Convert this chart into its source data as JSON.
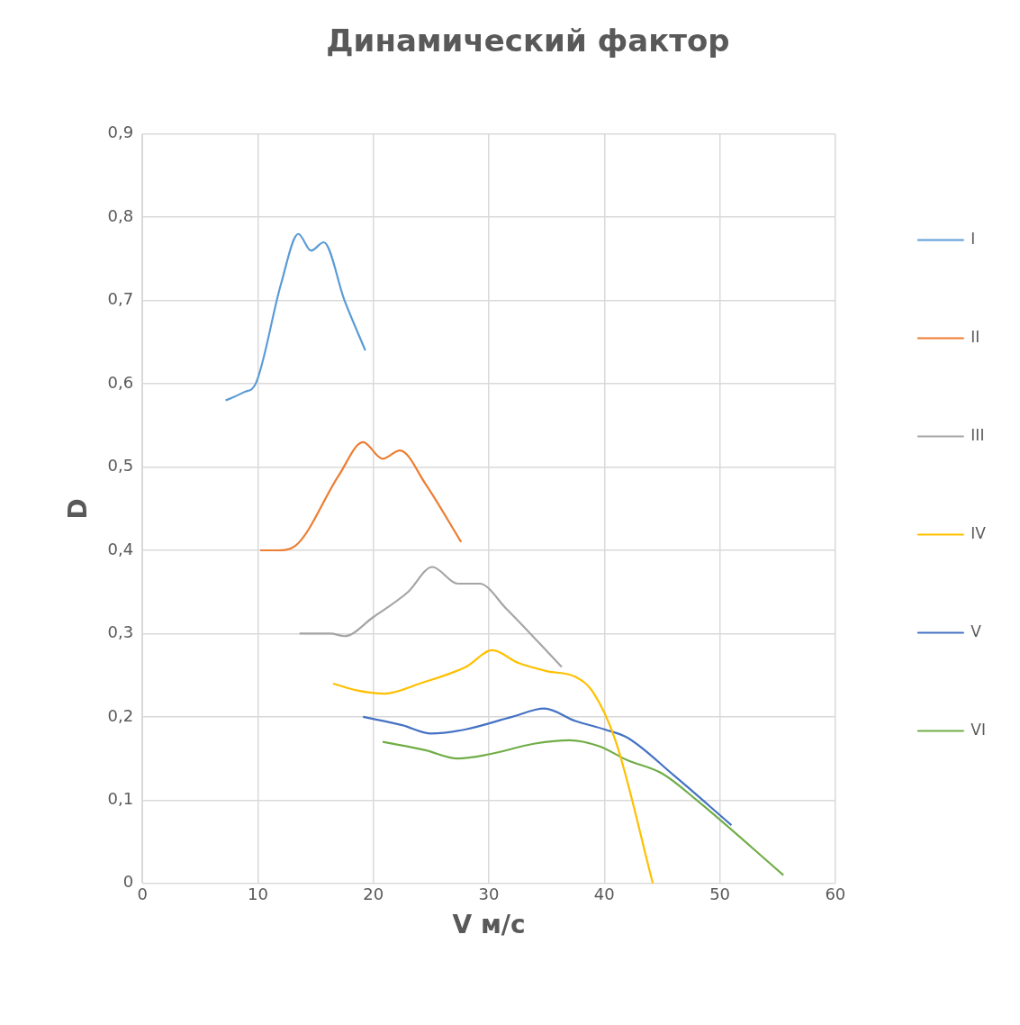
{
  "chart_data": {
    "type": "line",
    "title": "Динамический фактор",
    "xlabel": "V м/с",
    "ylabel": "D",
    "xlim": [
      0,
      60
    ],
    "xticks": [
      0,
      10,
      20,
      30,
      40,
      50,
      60
    ],
    "ylim": [
      0,
      0.9
    ],
    "yticks": [
      0,
      {
        "value": 0.1,
        "label": "0,1"
      },
      {
        "value": 0.2,
        "label": "0,2"
      },
      {
        "value": 0.3,
        "label": "0,3"
      },
      {
        "value": 0.4,
        "label": "0,4"
      },
      {
        "value": 0.5,
        "label": "0,5"
      },
      {
        "value": 0.6,
        "label": "0,6"
      },
      {
        "value": 0.7,
        "label": "0,7"
      },
      {
        "value": 0.8,
        "label": "0,8"
      },
      {
        "value": 0.9,
        "label": "0,9"
      }
    ],
    "grid": true,
    "legend": "right",
    "marker": "none",
    "line_style": "solid",
    "series": [
      {
        "name": "I",
        "color": "#5b9bd5",
        "x": [
          7.2,
          8.8,
          9.8,
          12,
          13.5,
          14.6,
          15.7,
          17.5,
          19.3
        ],
        "values": [
          0.58,
          0.59,
          0.6,
          0.72,
          0.78,
          0.76,
          0.77,
          0.7,
          0.64
        ]
      },
      {
        "name": "II",
        "color": "#ed7d31",
        "x": [
          10.2,
          11.7,
          13.2,
          17,
          19.1,
          20.8,
          22.3,
          24.5,
          27.6
        ],
        "values": [
          0.4,
          0.4,
          0.405,
          0.49,
          0.53,
          0.51,
          0.52,
          0.48,
          0.41
        ]
      },
      {
        "name": "III",
        "color": "#a5a5a5",
        "x": [
          13.6,
          16.3,
          17.5,
          20,
          23,
          25.1,
          27.3,
          29.2,
          31.5,
          36.3
        ],
        "values": [
          0.3,
          0.3,
          0.297,
          0.32,
          0.35,
          0.38,
          0.36,
          0.36,
          0.33,
          0.26
        ]
      },
      {
        "name": "IV",
        "color": "#ffc000",
        "x": [
          16.5,
          18.5,
          21,
          24,
          28,
          30.3,
          32.5,
          35,
          37.5,
          39,
          41,
          44.2
        ],
        "values": [
          0.24,
          0.232,
          0.228,
          0.24,
          0.26,
          0.28,
          0.265,
          0.255,
          0.248,
          0.23,
          0.17,
          0
        ]
      },
      {
        "name": "V",
        "color": "#4472c4",
        "x": [
          19.1,
          22.5,
          25,
          28,
          32,
          34.8,
          37.5,
          40,
          42,
          46,
          51
        ],
        "values": [
          0.2,
          0.19,
          0.18,
          0.185,
          0.2,
          0.21,
          0.195,
          0.185,
          0.175,
          0.13,
          0.07
        ]
      },
      {
        "name": "VI",
        "color": "#70ad47",
        "x": [
          20.8,
          24.5,
          27.3,
          30,
          34,
          37,
          39.5,
          42,
          45,
          48,
          55.5
        ],
        "values": [
          0.17,
          0.16,
          0.15,
          0.155,
          0.168,
          0.172,
          0.165,
          0.148,
          0.132,
          0.1,
          0.01
        ]
      }
    ]
  }
}
